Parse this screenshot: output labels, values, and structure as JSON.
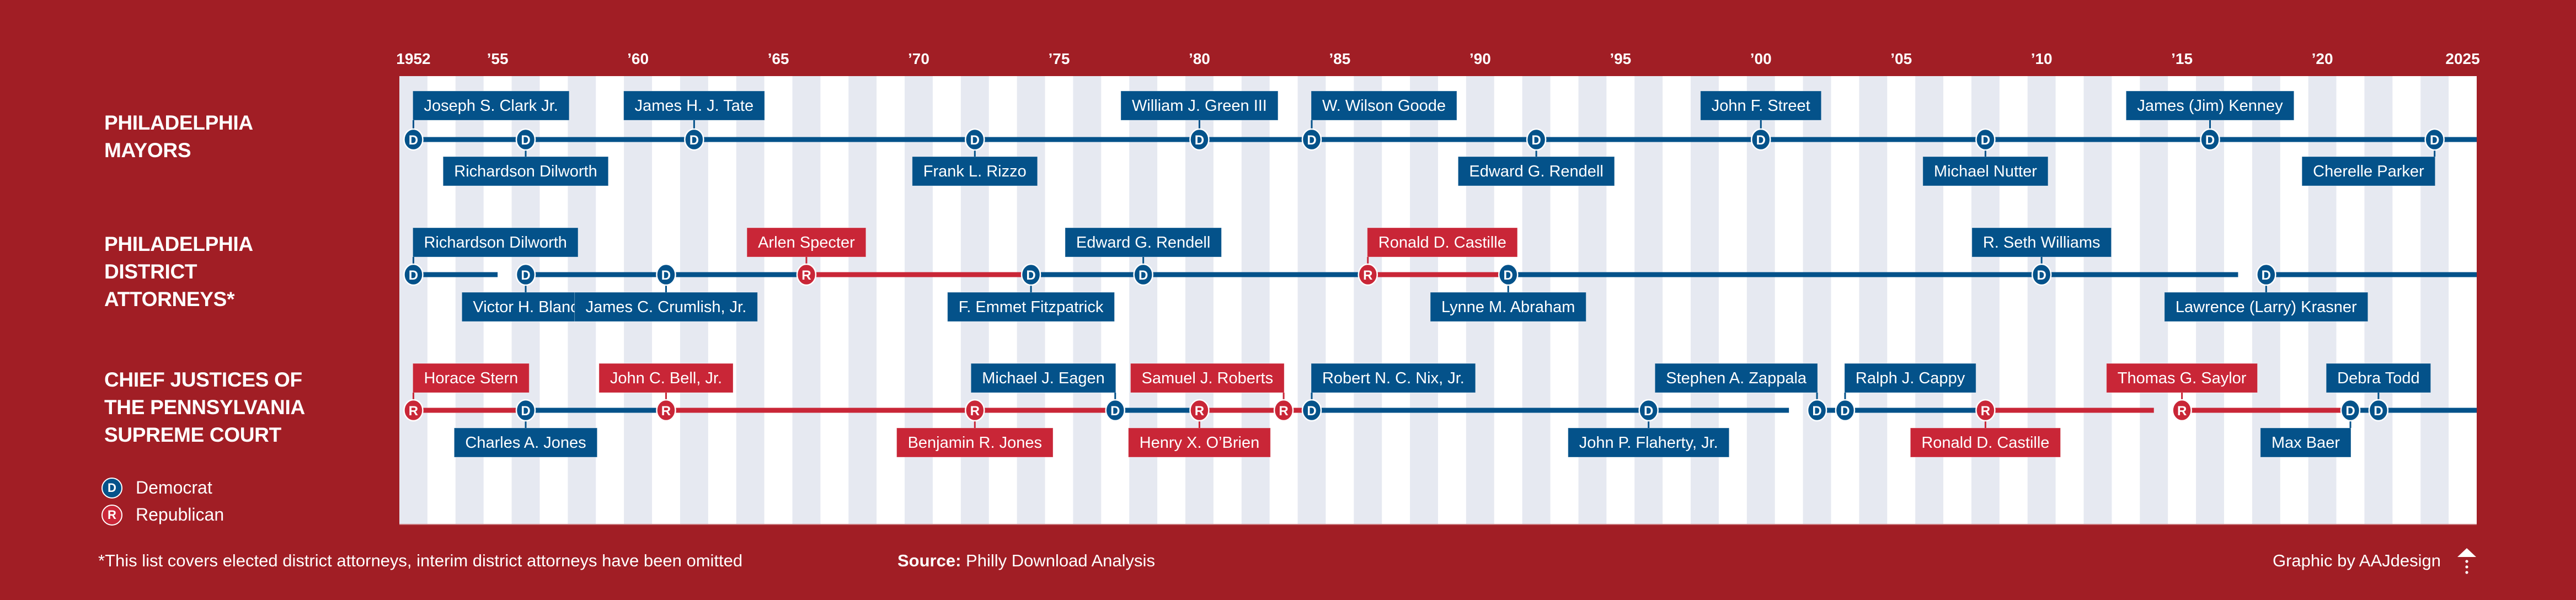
{
  "chart_data": {
    "type": "timeline",
    "title": "",
    "x_range": [
      1952,
      2025
    ],
    "x_tick_labels": [
      {
        "year": 1952,
        "label": "1952"
      },
      {
        "year": 1955,
        "label": "’55"
      },
      {
        "year": 1960,
        "label": "’60"
      },
      {
        "year": 1965,
        "label": "’65"
      },
      {
        "year": 1970,
        "label": "’70"
      },
      {
        "year": 1975,
        "label": "’75"
      },
      {
        "year": 1980,
        "label": "’80"
      },
      {
        "year": 1985,
        "label": "’85"
      },
      {
        "year": 1990,
        "label": "’90"
      },
      {
        "year": 1995,
        "label": "’95"
      },
      {
        "year": 2000,
        "label": "’00"
      },
      {
        "year": 2005,
        "label": "’05"
      },
      {
        "year": 2010,
        "label": "’10"
      },
      {
        "year": 2015,
        "label": "’15"
      },
      {
        "year": 2020,
        "label": "’20"
      },
      {
        "year": 2025,
        "label": "2025"
      }
    ],
    "grid": "alternating year stripes",
    "party_colors": {
      "D": "#04528a",
      "R": "#c92637"
    },
    "stripe_color": "#e6e9f1",
    "series": [
      {
        "name": "Philadelphia Mayors",
        "title_lines": "PHILADELPHIA\nMAYORS",
        "terms": [
          {
            "name": "Joseph S. Clark Jr.",
            "party": "D",
            "start": 1952,
            "label_pos": "top"
          },
          {
            "name": "Richardson Dilworth",
            "party": "D",
            "start": 1956,
            "label_pos": "bottom"
          },
          {
            "name": "James H. J. Tate",
            "party": "D",
            "start": 1962,
            "label_pos": "top"
          },
          {
            "name": "Frank L. Rizzo",
            "party": "D",
            "start": 1972,
            "label_pos": "bottom"
          },
          {
            "name": "William J. Green III",
            "party": "D",
            "start": 1980,
            "label_pos": "top"
          },
          {
            "name": "W. Wilson Goode",
            "party": "D",
            "start": 1984,
            "label_pos": "top"
          },
          {
            "name": "Edward G. Rendell",
            "party": "D",
            "start": 1992,
            "label_pos": "bottom"
          },
          {
            "name": "John F. Street",
            "party": "D",
            "start": 2000,
            "label_pos": "top"
          },
          {
            "name": "Michael Nutter",
            "party": "D",
            "start": 2008,
            "label_pos": "bottom"
          },
          {
            "name": "James (Jim) Kenney",
            "party": "D",
            "start": 2016,
            "label_pos": "top"
          },
          {
            "name": "Cherelle Parker",
            "party": "D",
            "start": 2024,
            "label_pos": "bottom"
          }
        ]
      },
      {
        "name": "Philadelphia District Attorneys*",
        "title_lines": "PHILADELPHIA\nDISTRICT\nATTORNEYS*",
        "terms": [
          {
            "name": "Richardson Dilworth",
            "party": "D",
            "start": 1952,
            "end": 1955,
            "label_pos": "top"
          },
          {
            "name": "Victor H. Blanc",
            "party": "D",
            "start": 1956,
            "label_pos": "bottom"
          },
          {
            "name": "James C. Crumlish, Jr.",
            "party": "D",
            "start": 1961,
            "label_pos": "bottom"
          },
          {
            "name": "Arlen Specter",
            "party": "R",
            "start": 1966,
            "label_pos": "top"
          },
          {
            "name": "F. Emmet Fitzpatrick",
            "party": "D",
            "start": 1974,
            "label_pos": "bottom"
          },
          {
            "name": "Edward G. Rendell",
            "party": "D",
            "start": 1978,
            "label_pos": "top"
          },
          {
            "name": "Ronald D. Castille",
            "party": "R",
            "start": 1986,
            "label_pos": "top"
          },
          {
            "name": "Lynne M. Abraham",
            "party": "D",
            "start": 1991,
            "label_pos": "bottom"
          },
          {
            "name": "R. Seth Williams",
            "party": "D",
            "start": 2010,
            "end": 2017,
            "label_pos": "top"
          },
          {
            "name": "Lawrence (Larry) Krasner",
            "party": "D",
            "start": 2018,
            "label_pos": "bottom"
          }
        ]
      },
      {
        "name": "Chief Justices of the Pennsylvania Supreme Court",
        "title_lines": "CHIEF JUSTICES OF\nTHE PENNSYLVANIA\nSUPREME COURT",
        "terms": [
          {
            "name": "Horace Stern",
            "party": "R",
            "start": 1952,
            "label_pos": "top"
          },
          {
            "name": "Charles A. Jones",
            "party": "D",
            "start": 1956,
            "label_pos": "bottom"
          },
          {
            "name": "John C. Bell, Jr.",
            "party": "R",
            "start": 1961,
            "label_pos": "top"
          },
          {
            "name": "Benjamin R. Jones",
            "party": "R",
            "start": 1972,
            "label_pos": "bottom"
          },
          {
            "name": "Michael J. Eagen",
            "party": "D",
            "start": 1977,
            "label_pos": "top"
          },
          {
            "name": "Henry X. O’Brien",
            "party": "R",
            "start": 1980,
            "label_pos": "bottom"
          },
          {
            "name": "Samuel J. Roberts",
            "party": "R",
            "start": 1983,
            "label_pos": "top"
          },
          {
            "name": "Robert N. C. Nix, Jr.",
            "party": "D",
            "start": 1984,
            "label_pos": "top"
          },
          {
            "name": "John P. Flaherty, Jr.",
            "party": "D",
            "start": 1996,
            "end": 2001,
            "label_pos": "bottom"
          },
          {
            "name": "Stephen A. Zappala",
            "party": "D",
            "start": 2002,
            "label_pos": "top"
          },
          {
            "name": "Ralph J. Cappy",
            "party": "D",
            "start": 2003,
            "label_pos": "top"
          },
          {
            "name": "Ronald D. Castille",
            "party": "R",
            "start": 2008,
            "end": 2014,
            "label_pos": "bottom"
          },
          {
            "name": "Thomas G. Saylor",
            "party": "R",
            "start": 2015,
            "label_pos": "top"
          },
          {
            "name": "Max Baer",
            "party": "D",
            "start": 2021,
            "label_pos": "bottom"
          },
          {
            "name": "Debra Todd",
            "party": "D",
            "start": 2022,
            "label_pos": "top"
          }
        ]
      }
    ],
    "legend": [
      {
        "party": "D",
        "label": "Democrat"
      },
      {
        "party": "R",
        "label": "Republican"
      }
    ],
    "legend_position": "bottom-left"
  },
  "footer": {
    "note": "*This list covers elected district attorneys, interim district attorneys have been omitted",
    "source_label": "Source:",
    "source_value": "Philly Download Analysis",
    "credit": "Graphic by AAJdesign"
  }
}
